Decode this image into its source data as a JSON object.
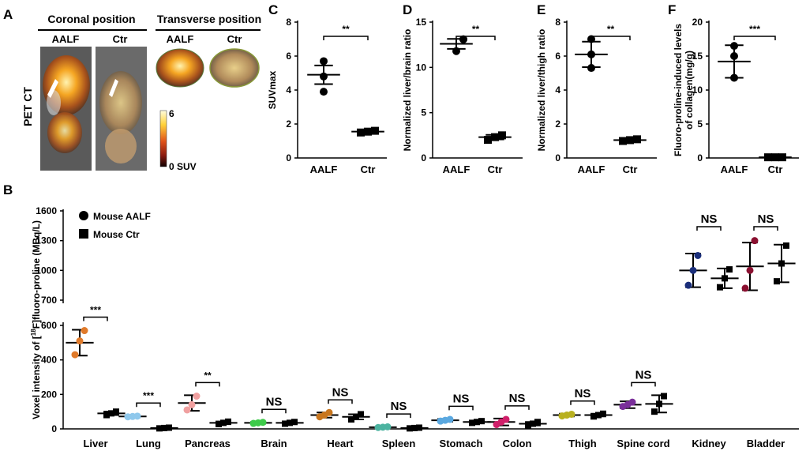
{
  "panels": {
    "A": {
      "letter": "A",
      "side_label": "PET CT",
      "coronal_title": "Coronal position",
      "transverse_title": "Transverse position",
      "img_labels": [
        "AALF",
        "Ctr",
        "AALF",
        "Ctr"
      ],
      "colorbar_max": "6",
      "colorbar_min": "0 SUV"
    },
    "B": {
      "letter": "B"
    },
    "C": {
      "letter": "C"
    },
    "D": {
      "letter": "D"
    },
    "E": {
      "letter": "E"
    },
    "F": {
      "letter": "F"
    }
  },
  "colors": {
    "ink": "#000000",
    "liver": "#e07a2a",
    "lung": "#8fc8ec",
    "pancreas": "#f0a0a0",
    "brain": "#3ecb4a",
    "heart": "#c8761e",
    "spleen": "#4cb3a0",
    "stomach": "#5aa8e0",
    "colon": "#d0206a",
    "thigh": "#b8b020",
    "spine": "#7a2f9a",
    "kidney": "#1a2e7a",
    "bladder": "#8a1030"
  },
  "chart_data": [
    {
      "id": "C",
      "type": "scatter",
      "title": "",
      "ylabel": "SUVmax",
      "xlabel": "",
      "ylim": [
        0,
        8
      ],
      "yticks": [
        "0",
        "2",
        "4",
        "6",
        "8"
      ],
      "categories": [
        "AALF",
        "Ctr"
      ],
      "groups": [
        {
          "name": "AALF",
          "marker": "circle",
          "points": [
            3.9,
            4.8,
            5.7
          ],
          "mean": 4.9,
          "sd": 0.55
        },
        {
          "name": "Ctr",
          "marker": "square",
          "points": [
            1.5,
            1.55,
            1.6
          ],
          "mean": 1.55,
          "sd": 0.05
        }
      ],
      "significance": "**"
    },
    {
      "id": "D",
      "type": "scatter",
      "title": "",
      "ylabel": "Normalized liver/brain ratio",
      "xlabel": "",
      "ylim": [
        0,
        15
      ],
      "yticks": [
        "0",
        "5",
        "10",
        "15"
      ],
      "categories": [
        "AALF",
        "Ctr"
      ],
      "groups": [
        {
          "name": "AALF",
          "marker": "circle",
          "points": [
            11.8,
            13.1,
            13.1
          ],
          "mean": 12.6,
          "sd": 0.55
        },
        {
          "name": "Ctr",
          "marker": "square",
          "points": [
            2.0,
            2.3,
            2.5
          ],
          "mean": 2.3,
          "sd": 0.25
        }
      ],
      "significance": "**"
    },
    {
      "id": "E",
      "type": "scatter",
      "title": "",
      "ylabel": "Normalized liver/thigh ratio",
      "xlabel": "",
      "ylim": [
        0,
        8
      ],
      "yticks": [
        "0",
        "2",
        "4",
        "6",
        "8"
      ],
      "categories": [
        "AALF",
        "Ctr"
      ],
      "groups": [
        {
          "name": "AALF",
          "marker": "circle",
          "points": [
            5.3,
            6.1,
            7.0
          ],
          "mean": 6.1,
          "sd": 0.75
        },
        {
          "name": "Ctr",
          "marker": "square",
          "points": [
            1.0,
            1.05,
            1.1
          ],
          "mean": 1.05,
          "sd": 0.05
        }
      ],
      "significance": "**"
    },
    {
      "id": "F",
      "type": "scatter",
      "title": "",
      "ylabel": "Fluoro-proline-induced levels of collagen(mg/g)",
      "xlabel": "",
      "ylim": [
        0,
        20
      ],
      "yticks": [
        "0",
        "5",
        "10",
        "15",
        "20"
      ],
      "categories": [
        "AALF",
        "Ctr"
      ],
      "groups": [
        {
          "name": "AALF",
          "marker": "circle",
          "points": [
            11.8,
            15.0,
            16.5
          ],
          "mean": 14.2,
          "sd": 2.4
        },
        {
          "name": "Ctr",
          "marker": "square",
          "points": [
            0.1,
            0.1,
            0.1
          ],
          "mean": 0.1,
          "sd": 0.0
        }
      ],
      "significance": "***"
    },
    {
      "id": "B",
      "type": "scatter",
      "title": "",
      "ylabel": "Voxel intensity of [18F]fluoro-proline (MBq/L)",
      "ylabel_parts": [
        "Voxel intensity of [",
        "18",
        "F]fluoro-proline (MBq/L)"
      ],
      "xlabel": "",
      "y_axis_break": {
        "lower_range": [
          0,
          600
        ],
        "upper_range": [
          700,
          1600
        ]
      },
      "yticks": [
        "0",
        "200",
        "400",
        "600",
        "700",
        "1000",
        "1300",
        "1600"
      ],
      "legend": {
        "placement": "top-left",
        "entries": [
          "Mouse AALF",
          "Mouse Ctr"
        ]
      },
      "categories": [
        "Liver",
        "Lung",
        "Pancreas",
        "Brain",
        "Heart",
        "Spleen",
        "Stomach",
        "Colon",
        "Thigh",
        "Spine cord",
        "Kidney",
        "Bladder"
      ],
      "significance": [
        "***",
        "***",
        "**",
        "NS",
        "NS",
        "NS",
        "NS",
        "NS",
        "NS",
        "NS",
        "NS",
        "NS"
      ],
      "series": [
        {
          "name": "Mouse AALF",
          "marker": "circle",
          "means": [
            500,
            72,
            150,
            35,
            80,
            10,
            50,
            40,
            80,
            140,
            1000,
            1040
          ],
          "sds": [
            75,
            5,
            45,
            5,
            15,
            3,
            8,
            20,
            8,
            20,
            170,
            240
          ],
          "points": [
            [
              430,
              510,
              570
            ],
            [
              70,
              72,
              74
            ],
            [
              110,
              140,
              190
            ],
            [
              32,
              35,
              38
            ],
            [
              70,
              80,
              95
            ],
            [
              8,
              10,
              12
            ],
            [
              45,
              50,
              55
            ],
            [
              25,
              40,
              55
            ],
            [
              75,
              80,
              85
            ],
            [
              130,
              140,
              155
            ],
            [
              850,
              1000,
              1150
            ],
            [
              820,
              1000,
              1300
            ]
          ]
        },
        {
          "name": "Mouse Ctr",
          "marker": "square",
          "means": [
            90,
            5,
            35,
            35,
            70,
            5,
            40,
            30,
            80,
            145,
            920,
            1070
          ],
          "sds": [
            10,
            2,
            8,
            5,
            15,
            2,
            6,
            10,
            8,
            50,
            100,
            190
          ],
          "points": [
            [
              80,
              90,
              100
            ],
            [
              3,
              5,
              7
            ],
            [
              28,
              35,
              42
            ],
            [
              30,
              35,
              40
            ],
            [
              55,
              70,
              85
            ],
            [
              3,
              5,
              7
            ],
            [
              35,
              40,
              45
            ],
            [
              20,
              30,
              40
            ],
            [
              72,
              80,
              88
            ],
            [
              100,
              145,
              190
            ],
            [
              830,
              920,
              1010
            ],
            [
              890,
              1070,
              1250
            ]
          ]
        }
      ]
    }
  ]
}
